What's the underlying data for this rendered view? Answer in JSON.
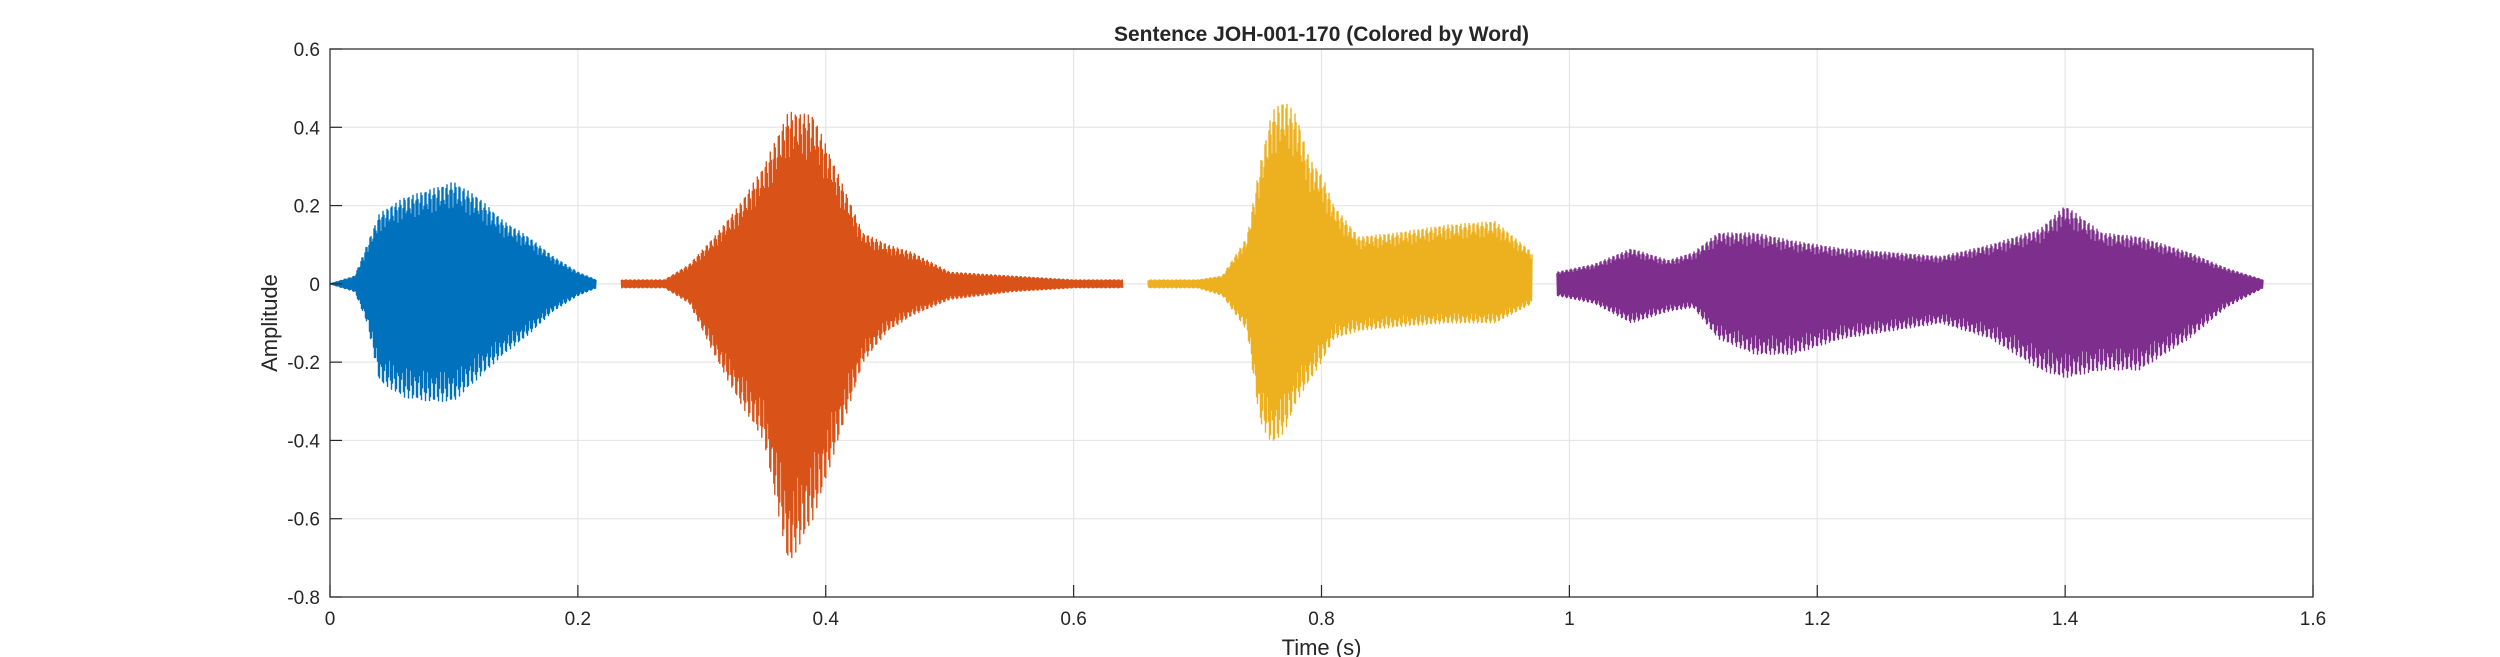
{
  "chart_data": {
    "type": "line",
    "title": "Sentence JOH-001-170 (Colored by Word)",
    "xlabel": "Time (s)",
    "ylabel": "Amplitude",
    "xlim": [
      0,
      1.6
    ],
    "ylim": [
      -0.8,
      0.6
    ],
    "xticks": [
      0,
      0.2,
      0.4,
      0.6,
      0.8,
      1,
      1.2,
      1.4,
      1.6
    ],
    "yticks": [
      -0.8,
      -0.6,
      -0.4,
      -0.2,
      0,
      0.2,
      0.4,
      0.6
    ],
    "grid": true,
    "legend": "none",
    "series": [
      {
        "color": "#0072BD",
        "x": [
          0,
          0.02,
          0.03,
          0.04,
          0.06,
          0.08,
          0.1,
          0.12,
          0.14,
          0.16,
          0.18,
          0.2,
          0.215
        ],
        "max": [
          0,
          0.02,
          0.1,
          0.18,
          0.22,
          0.24,
          0.26,
          0.22,
          0.16,
          0.12,
          0.07,
          0.03,
          0.01
        ],
        "min": [
          0,
          -0.02,
          -0.1,
          -0.25,
          -0.29,
          -0.3,
          -0.3,
          -0.24,
          -0.18,
          -0.13,
          -0.07,
          -0.03,
          -0.01
        ]
      },
      {
        "color": "#D95319",
        "x": [
          0.235,
          0.27,
          0.29,
          0.31,
          0.33,
          0.35,
          0.37,
          0.39,
          0.41,
          0.43,
          0.45,
          0.47,
          0.5,
          0.55,
          0.6,
          0.64
        ],
        "max": [
          0.01,
          0.01,
          0.05,
          0.12,
          0.2,
          0.3,
          0.44,
          0.43,
          0.28,
          0.13,
          0.1,
          0.08,
          0.03,
          0.02,
          0.01,
          0.01
        ],
        "min": [
          -0.01,
          -0.01,
          -0.05,
          -0.18,
          -0.3,
          -0.4,
          -0.72,
          -0.6,
          -0.4,
          -0.2,
          -0.12,
          -0.08,
          -0.04,
          -0.02,
          -0.01,
          -0.01
        ]
      },
      {
        "color": "#EDB120",
        "x": [
          0.66,
          0.7,
          0.72,
          0.74,
          0.75,
          0.76,
          0.77,
          0.78,
          0.79,
          0.8,
          0.81,
          0.83,
          0.86,
          0.9,
          0.94,
          0.97
        ],
        "max": [
          0.01,
          0.01,
          0.02,
          0.12,
          0.3,
          0.44,
          0.47,
          0.43,
          0.32,
          0.28,
          0.2,
          0.12,
          0.13,
          0.15,
          0.16,
          0.08
        ],
        "min": [
          -0.01,
          -0.01,
          -0.03,
          -0.12,
          -0.35,
          -0.41,
          -0.38,
          -0.3,
          -0.25,
          -0.2,
          -0.14,
          -0.12,
          -0.11,
          -0.1,
          -0.1,
          -0.05
        ]
      },
      {
        "color": "#7E2F8E",
        "x": [
          0.99,
          1.02,
          1.05,
          1.08,
          1.1,
          1.12,
          1.15,
          1.18,
          1.22,
          1.26,
          1.3,
          1.34,
          1.38,
          1.4,
          1.43,
          1.46,
          1.5,
          1.53,
          1.56
        ],
        "max": [
          0.03,
          0.05,
          0.09,
          0.06,
          0.08,
          0.13,
          0.13,
          0.11,
          0.09,
          0.08,
          0.07,
          0.1,
          0.14,
          0.2,
          0.13,
          0.12,
          0.08,
          0.04,
          0.01
        ],
        "min": [
          -0.03,
          -0.05,
          -0.1,
          -0.07,
          -0.06,
          -0.14,
          -0.18,
          -0.18,
          -0.14,
          -0.12,
          -0.1,
          -0.14,
          -0.22,
          -0.24,
          -0.22,
          -0.22,
          -0.14,
          -0.06,
          -0.01
        ]
      }
    ]
  }
}
